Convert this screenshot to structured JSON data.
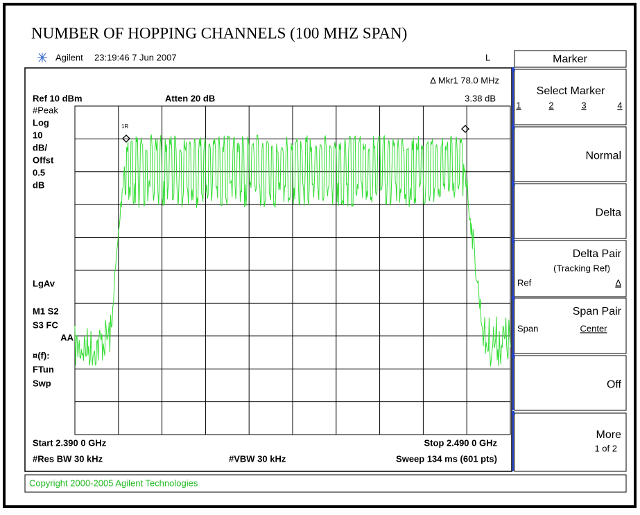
{
  "title": "NUMBER OF HOPPING CHANNELS (100 MHZ SPAN)",
  "header": {
    "brand": "Agilent",
    "timestamp": "23:19:46  7 Jun 2007",
    "indicator": "L"
  },
  "marker_readout": {
    "label": "Δ Mkr1  78.0 MHz",
    "value": "3.38 dB",
    "marker_1": "1R"
  },
  "settings": {
    "ref": "Ref 10 dBm",
    "atten": "Atten 20 dB"
  },
  "left_labels": [
    "#Peak",
    "Log",
    "10",
    "dB/",
    "Offst",
    "0.5",
    "dB",
    "LgAv",
    "M1  S2",
    "S3  FC",
    "AA",
    "¤(f):",
    "FTun",
    "Swp"
  ],
  "footer": {
    "start": "Start 2.390 0 GHz",
    "stop": "Stop 2.490 0 GHz",
    "res_bw": "#Res BW 30 kHz",
    "vbw": "#VBW 30 kHz",
    "sweep": "Sweep 134 ms (601 pts)"
  },
  "softkeys": {
    "title": "Marker",
    "keys": [
      {
        "label": "Select Marker",
        "options": [
          "1",
          "2",
          "3",
          "4"
        ]
      },
      {
        "label": "Normal"
      },
      {
        "label": "Delta"
      },
      {
        "label": "Delta Pair",
        "note": "(Tracking Ref)",
        "options": [
          "Ref",
          "Δ"
        ]
      },
      {
        "label": "Span Pair",
        "options": [
          "Span",
          "Center"
        ]
      },
      {
        "label": "Off"
      },
      {
        "label": "More",
        "note": "1 of 2"
      }
    ]
  },
  "copyright": "Copyright 2000-2005 Agilent Technologies"
}
